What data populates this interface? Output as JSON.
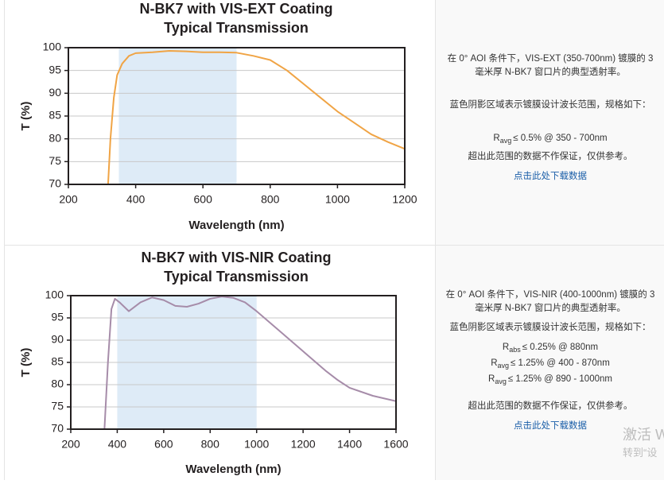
{
  "chart_data": [
    {
      "type": "line",
      "title": "N-BK7 with VIS-EXT Coating",
      "subtitle": "Typical Transmission",
      "x_label": "Wavelength (nm)",
      "y_label": "T (%)",
      "x": [
        318,
        325,
        335,
        345,
        360,
        380,
        400,
        450,
        500,
        550,
        600,
        650,
        700,
        750,
        800,
        850,
        900,
        950,
        1000,
        1050,
        1100,
        1150,
        1200
      ],
      "values": [
        70,
        80,
        89,
        94,
        96.5,
        98.2,
        98.8,
        99,
        99.3,
        99.2,
        99,
        99,
        98.9,
        98.2,
        97.3,
        95,
        92,
        89,
        86,
        83.5,
        81,
        79.3,
        77.8
      ],
      "color": "#f0a445",
      "shaded_range": [
        350,
        700
      ],
      "shade_color": "#deebf7",
      "xlim": [
        200,
        1200
      ],
      "xticks": [
        200,
        400,
        600,
        800,
        1000,
        1200
      ],
      "ylim": [
        70,
        100
      ],
      "yticks": [
        70,
        75,
        80,
        85,
        90,
        95,
        100
      ],
      "grid": true
    },
    {
      "type": "line",
      "title": "N-BK7 with VIS-NIR Coating",
      "subtitle": "Typical Transmission",
      "x_label": "Wavelength (nm)",
      "y_label": "T (%)",
      "x": [
        345,
        360,
        375,
        390,
        410,
        450,
        500,
        550,
        600,
        650,
        700,
        750,
        800,
        850,
        900,
        950,
        1000,
        1100,
        1200,
        1300,
        1350,
        1400,
        1500,
        1600
      ],
      "values": [
        70,
        85,
        97,
        99.3,
        98.5,
        96.5,
        98.5,
        99.6,
        99,
        97.7,
        97.5,
        98.2,
        99.3,
        99.8,
        99.5,
        98.5,
        96.5,
        92,
        87.5,
        83,
        81,
        79.3,
        77.5,
        76.3
      ],
      "color": "#a68ca9",
      "shaded_range": [
        400,
        1000
      ],
      "shade_color": "#deebf7",
      "xlim": [
        200,
        1600
      ],
      "xticks": [
        200,
        400,
        600,
        800,
        1000,
        1200,
        1400,
        1600
      ],
      "ylim": [
        70,
        100
      ],
      "yticks": [
        70,
        75,
        80,
        85,
        90,
        95,
        100
      ],
      "grid": true
    }
  ],
  "notes": [
    {
      "description": "在 0° AOI 条件下，VIS-EXT (350-700nm) 镀膜的 3 毫米厚 N-BK7 窗口片的典型透射率。",
      "intro": "蓝色阴影区域表示镀膜设计波长范围，规格如下：",
      "specs": [
        {
          "symbol": "R",
          "sub": "avg",
          "text": "≤ 0.5% @ 350 - 700nm"
        }
      ],
      "disclaimer": "超出此范围的数据不作保证，仅供参考。",
      "link": "点击此处下载数据"
    },
    {
      "description": "在 0° AOI 条件下，VIS-NIR (400-1000nm) 镀膜的 3 毫米厚 N-BK7 窗口片的典型透射率。",
      "intro": "蓝色阴影区域表示镀膜设计波长范围，规格如下：",
      "specs": [
        {
          "symbol": "R",
          "sub": "abs",
          "text": "≤ 0.25% @ 880nm"
        },
        {
          "symbol": "R",
          "sub": "avg",
          "text": "≤ 1.25% @ 400 - 870nm"
        },
        {
          "symbol": "R",
          "sub": "avg",
          "text": "≤ 1.25% @ 890 - 1000nm"
        }
      ],
      "disclaimer": "超出此范围的数据不作保证，仅供参考。",
      "link": "点击此处下载数据"
    }
  ],
  "watermark": [
    "激活 W",
    "转到“设"
  ]
}
